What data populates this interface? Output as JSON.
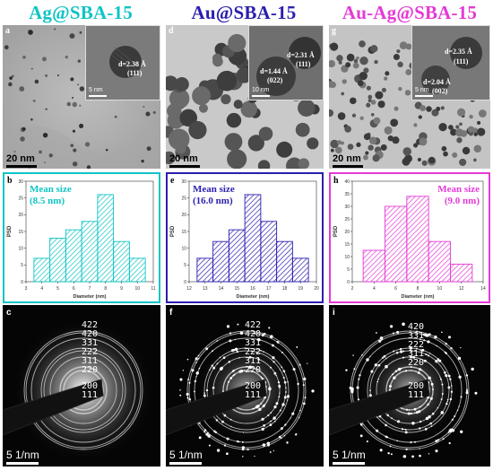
{
  "titles": [
    {
      "text": "Ag@SBA-15",
      "color": "#11c4c4"
    },
    {
      "text": "Au@SBA-15",
      "color": "#2b1fae"
    },
    {
      "text": "Au-Ag@SBA-15",
      "color": "#e43ad6"
    }
  ],
  "tem_panels": [
    {
      "letter": "a",
      "scale": "20 nm",
      "inset_scale": "5 nm",
      "inset_labels": [
        "d=2.38 Å",
        "(111)"
      ]
    },
    {
      "letter": "d",
      "scale": "20 nm",
      "inset_scale": "10 nm",
      "inset_labels": [
        "d=2.31 Å",
        "(111)",
        "d=1.44 Å",
        "(022)"
      ]
    },
    {
      "letter": "g",
      "scale": "20 nm",
      "inset_scale": "5 nm",
      "inset_labels": [
        "d=2.35 Å",
        "(111)",
        "d=2.04 Å",
        "(002)"
      ]
    }
  ],
  "saed_panels": [
    {
      "letter": "c",
      "scale": "5 1/nm",
      "hkl_upper": [
        "422",
        "420",
        "331",
        "222",
        "311",
        "220"
      ],
      "hkl_lower": [
        "200",
        "111"
      ]
    },
    {
      "letter": "f",
      "scale": "5 1/nm",
      "hkl_upper": [
        "422",
        "420",
        "331",
        "222",
        "311",
        "220"
      ],
      "hkl_lower": [
        "200",
        "111"
      ]
    },
    {
      "letter": "i",
      "scale": "5 1/nm",
      "hkl_upper": [
        "420",
        "331",
        "222",
        "311",
        "220"
      ],
      "hkl_lower": [
        "200",
        "111"
      ]
    }
  ],
  "chart_data": [
    {
      "type": "bar",
      "panel": "b",
      "color": "#11c4c4",
      "annotation": [
        "Mean size",
        "(8.5 nm)"
      ],
      "annotation_pos": "top-left",
      "xlabel": "Diameter (nm)",
      "ylabel": "PSD",
      "x": [
        4,
        5,
        6,
        7,
        8,
        9,
        10
      ],
      "values": [
        7,
        13,
        15.5,
        18,
        26,
        12,
        7
      ],
      "xlim": [
        3,
        11
      ],
      "xticks": [
        3,
        4,
        5,
        6,
        7,
        8,
        9,
        10,
        11
      ],
      "ylim": [
        0,
        30
      ],
      "yticks": [
        0,
        5,
        10,
        15,
        20,
        25,
        30
      ]
    },
    {
      "type": "bar",
      "panel": "e",
      "color": "#2b1fae",
      "annotation": [
        "Mean size",
        "(16.0 nm)"
      ],
      "annotation_pos": "top-left",
      "xlabel": "Diameter (nm)",
      "ylabel": "PSD",
      "x": [
        13,
        14,
        15,
        16,
        17,
        18,
        19
      ],
      "values": [
        7,
        12,
        15.5,
        26,
        18,
        12,
        7
      ],
      "xlim": [
        12,
        20
      ],
      "xticks": [
        12,
        13,
        14,
        15,
        16,
        17,
        18,
        19,
        20
      ],
      "ylim": [
        0,
        30
      ],
      "yticks": [
        0,
        5,
        10,
        15,
        20,
        25,
        30
      ]
    },
    {
      "type": "bar",
      "panel": "h",
      "color": "#e43ad6",
      "annotation": [
        "Mean size",
        "(9.0 nm)"
      ],
      "annotation_pos": "top-right",
      "xlabel": "Diameter (nm)",
      "ylabel": "PSD",
      "x": [
        4,
        6,
        8,
        10,
        12
      ],
      "values": [
        12.5,
        30,
        34,
        16,
        7
      ],
      "xlim": [
        2,
        14
      ],
      "xticks": [
        2,
        4,
        6,
        8,
        10,
        12,
        14
      ],
      "ylim": [
        0,
        40
      ],
      "yticks": [
        0,
        5,
        10,
        15,
        20,
        25,
        30,
        35,
        40
      ]
    }
  ]
}
